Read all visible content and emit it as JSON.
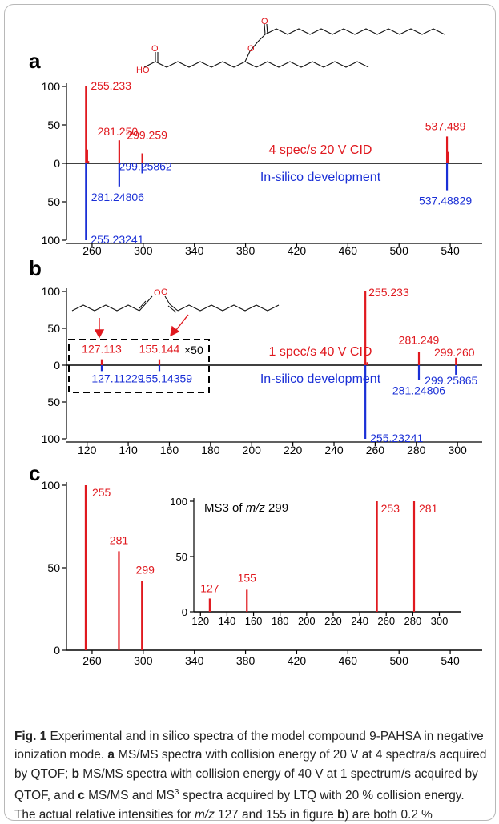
{
  "colors": {
    "experimental": "#e0191f",
    "insilico": "#1a2fd6",
    "axis": "#000000"
  },
  "panel_labels": {
    "a": "a",
    "b": "b",
    "c": "c"
  },
  "structure_labels": {
    "ho": "HO",
    "o_ester": "O",
    "o_minus": "O"
  },
  "caption": {
    "label": "Fig. 1",
    "s1": " Experimental and in silico spectra of the model compound 9-PAHSA in negative ionization mode. ",
    "a_bold": "a",
    "s2": " MS/MS spectra with collision energy of 20 V at 4 spectra/s acquired by QTOF; ",
    "b_bold": "b",
    "s3": " MS/MS spectra with collision energy of 40 V at 1 spectrum/s acquired by QTOF, and ",
    "c_bold": "c",
    "s4": " MS/MS and MS",
    "sup3": "3",
    "s5": " spectra acquired by LTQ with 20 % collision energy. The actual relative intensities for ",
    "mz": "m/z",
    "s6": " 127 and 155 in figure ",
    "b2_bold": "b",
    "s7": ") are both 0.2 %"
  },
  "chart_data": [
    {
      "id": "a",
      "type": "bar",
      "xlim": [
        240,
        565
      ],
      "ylim": [
        -100,
        100
      ],
      "xticks": [
        260,
        300,
        340,
        380,
        420,
        460,
        500,
        540
      ],
      "yticks": [
        {
          "v": 100,
          "t": "100"
        },
        {
          "v": 50,
          "t": "50"
        },
        {
          "v": 0,
          "t": "0"
        },
        {
          "v": -50,
          "t": "50"
        },
        {
          "v": -100,
          "t": "100"
        }
      ],
      "series": [
        {
          "name": "4 spec/s 20 V CID",
          "color": "experimental",
          "legend_dy": -12,
          "points": [
            {
              "x": 255.233,
              "y": 100,
              "label": "255.233"
            },
            {
              "x": 256.2,
              "y": 18
            },
            {
              "x": 257.0,
              "y": 3
            },
            {
              "x": 281.25,
              "y": 30,
              "label": "281.250"
            },
            {
              "x": 299.259,
              "y": 13,
              "label": "299.259"
            },
            {
              "x": 537.489,
              "y": 35,
              "label": "537.489"
            },
            {
              "x": 538.5,
              "y": 15
            }
          ]
        },
        {
          "name": "In-silico development",
          "color": "insilico",
          "legend_dy": 22,
          "points": [
            {
              "x": 255.23241,
              "y": -100,
              "label": "255.23241"
            },
            {
              "x": 281.24806,
              "y": -30,
              "label": "281.24806"
            },
            {
              "x": 299.25862,
              "y": -13,
              "label": "299.25862"
            },
            {
              "x": 537.48829,
              "y": -35,
              "label": "537.48829"
            }
          ]
        }
      ]
    },
    {
      "id": "b",
      "type": "bar",
      "xlim": [
        110,
        312
      ],
      "ylim": [
        -100,
        100
      ],
      "xticks": [
        120,
        140,
        160,
        180,
        200,
        220,
        240,
        260,
        280,
        300
      ],
      "yticks": [
        {
          "v": 100,
          "t": "100"
        },
        {
          "v": 50,
          "t": "50"
        },
        {
          "v": 0,
          "t": "0"
        },
        {
          "v": -50,
          "t": "50"
        },
        {
          "v": -100,
          "t": "100"
        }
      ],
      "inset_note": "×50",
      "series": [
        {
          "name": "1 spec/s 40 V CID",
          "color": "experimental",
          "legend_dy": -12,
          "points": [
            {
              "x": 127.113,
              "y": 8,
              "label": "127.113"
            },
            {
              "x": 155.144,
              "y": 8,
              "label": "155.144"
            },
            {
              "x": 255.233,
              "y": 100,
              "label": "255.233"
            },
            {
              "x": 256.2,
              "y": 4
            },
            {
              "x": 281.249,
              "y": 18,
              "label": "281.249"
            },
            {
              "x": 299.26,
              "y": 10,
              "label": "299.260"
            }
          ]
        },
        {
          "name": "In-silico development",
          "color": "insilico",
          "legend_dy": 22,
          "points": [
            {
              "x": 127.11229,
              "y": -8,
              "label": "127.11229"
            },
            {
              "x": 155.14359,
              "y": -8,
              "label": "155.14359"
            },
            {
              "x": 255.23241,
              "y": -100,
              "label": "255.23241"
            },
            {
              "x": 281.24806,
              "y": -20,
              "label": "281.24806"
            },
            {
              "x": 299.25865,
              "y": -13,
              "label": "299.25865"
            }
          ]
        }
      ]
    },
    {
      "id": "c",
      "type": "bar",
      "xlim": [
        240,
        565
      ],
      "ylim": [
        0,
        100
      ],
      "xticks": [
        260,
        300,
        340,
        380,
        420,
        460,
        500,
        540
      ],
      "yticks": [
        {
          "v": 100,
          "t": "100"
        },
        {
          "v": 50,
          "t": "50"
        },
        {
          "v": 0,
          "t": "0"
        }
      ],
      "series": [
        {
          "name": "",
          "color": "experimental",
          "points": [
            {
              "x": 255,
              "y": 100,
              "label": "255"
            },
            {
              "x": 281,
              "y": 60,
              "label": "281"
            },
            {
              "x": 299,
              "y": 42,
              "label": "299"
            }
          ]
        }
      ]
    },
    {
      "id": "c-inset",
      "type": "bar",
      "title_prefix": "MS3 of ",
      "title_mz": "m/z",
      "title_suffix": " 299",
      "xlim": [
        115,
        316
      ],
      "ylim": [
        0,
        100
      ],
      "xticks": [
        120,
        140,
        160,
        180,
        200,
        220,
        240,
        260,
        280,
        300
      ],
      "yticks": [
        {
          "v": 100,
          "t": "100"
        },
        {
          "v": 50,
          "t": "50"
        },
        {
          "v": 0,
          "t": "0"
        }
      ],
      "series": [
        {
          "name": "",
          "color": "experimental",
          "points": [
            {
              "x": 127,
              "y": 12,
              "label": "127"
            },
            {
              "x": 155,
              "y": 20,
              "label": "155"
            },
            {
              "x": 253,
              "y": 100,
              "label": "253"
            },
            {
              "x": 281,
              "y": 100,
              "label": "281"
            }
          ]
        }
      ]
    }
  ]
}
